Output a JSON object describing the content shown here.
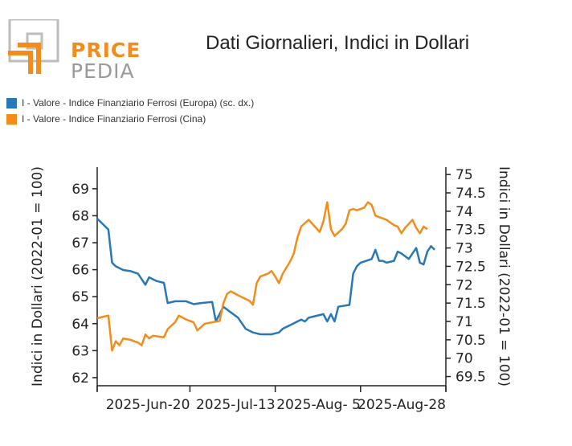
{
  "logo": {
    "word_top": "PRICE",
    "word_bottom": "PEDIA"
  },
  "title": "Dati Giornalieri, Indici in Dollari",
  "colors": {
    "europa": "#2878b5",
    "cina": "#f28c1a",
    "axis": "#222222",
    "logo_orange": "#f28c1a",
    "logo_grey": "#bdbdbd"
  },
  "legend": [
    {
      "label": "I - Valore - Indice Finanziario Ferrosi (Europa) (sc. dx.)",
      "color": "#2878b5"
    },
    {
      "label": "I - Valore - Indice Finanziario Ferrosi (Cina)",
      "color": "#f28c1a"
    }
  ],
  "chart_data": {
    "type": "line",
    "title": "Dati Giornalieri, Indici in Dollari",
    "xlabel": "",
    "ylabel_left": "Indici in Dollari (2022-01 = 100)",
    "ylabel_right": "Indici in Dollari (2022-01 = 100)",
    "x_tick_labels": [
      "2025-Jun-20",
      "2025-Jul-13",
      "2025-Aug- 5",
      "2025-Aug-28"
    ],
    "x_tick_days": [
      25,
      48,
      71,
      94
    ],
    "x_range_days": [
      0,
      94
    ],
    "x_origin_date": "2025-05-26",
    "ylim_left": [
      61.7,
      69.8
    ],
    "yticks_left": [
      62,
      63,
      64,
      65,
      66,
      67,
      68,
      69
    ],
    "ylim_right": [
      69.25,
      75.2
    ],
    "yticks_right": [
      69.5,
      70,
      70.5,
      71,
      71.5,
      72,
      72.5,
      73,
      73.5,
      74,
      74.5,
      75
    ],
    "grid": false,
    "legend_placement": "top-left",
    "series": [
      {
        "name": "I - Valore - Indice Finanziario Ferrosi (Europa) (sc. dx.)",
        "axis": "right",
        "color": "#2878b5",
        "points": [
          [
            0,
            73.8
          ],
          [
            3,
            73.5
          ],
          [
            4,
            72.6
          ],
          [
            5,
            72.5
          ],
          [
            7,
            72.4
          ],
          [
            9,
            72.37
          ],
          [
            11,
            72.3
          ],
          [
            13,
            72.0
          ],
          [
            14,
            72.2
          ],
          [
            16,
            72.1
          ],
          [
            18,
            72.05
          ],
          [
            19,
            71.5
          ],
          [
            21,
            71.55
          ],
          [
            24,
            71.55
          ],
          [
            26,
            71.47
          ],
          [
            28,
            71.5
          ],
          [
            31,
            71.53
          ],
          [
            32,
            71.0
          ],
          [
            34,
            71.4
          ],
          [
            36,
            71.25
          ],
          [
            38,
            71.1
          ],
          [
            40,
            70.8
          ],
          [
            42,
            70.7
          ],
          [
            44,
            70.65
          ],
          [
            47,
            70.65
          ],
          [
            49,
            70.7
          ],
          [
            50,
            70.8
          ],
          [
            52,
            70.9
          ],
          [
            54,
            71.0
          ],
          [
            55,
            71.05
          ],
          [
            56,
            71.0
          ],
          [
            57,
            71.1
          ],
          [
            59,
            71.15
          ],
          [
            61,
            71.2
          ],
          [
            62,
            71.0
          ],
          [
            63,
            71.2
          ],
          [
            64,
            71.0
          ],
          [
            65,
            71.4
          ],
          [
            68,
            71.45
          ],
          [
            69,
            72.3
          ],
          [
            70,
            72.5
          ],
          [
            71,
            72.6
          ],
          [
            74,
            72.7
          ],
          [
            75,
            72.95
          ],
          [
            76,
            72.65
          ],
          [
            77,
            72.65
          ],
          [
            78,
            72.6
          ],
          [
            80,
            72.65
          ],
          [
            81,
            72.9
          ],
          [
            82,
            72.85
          ],
          [
            84,
            72.7
          ],
          [
            86,
            73.0
          ],
          [
            87,
            72.6
          ],
          [
            88,
            72.55
          ],
          [
            89,
            72.9
          ],
          [
            90,
            73.05
          ],
          [
            91,
            72.95
          ]
        ]
      },
      {
        "name": "I - Valore - Indice Finanziario Ferrosi (Cina)",
        "axis": "left",
        "color": "#f28c1a",
        "points": [
          [
            0,
            64.2
          ],
          [
            3,
            64.3
          ],
          [
            4,
            63.0
          ],
          [
            5,
            63.35
          ],
          [
            6,
            63.2
          ],
          [
            7,
            63.45
          ],
          [
            9,
            63.4
          ],
          [
            11,
            63.3
          ],
          [
            12,
            63.2
          ],
          [
            13,
            63.6
          ],
          [
            14,
            63.45
          ],
          [
            15,
            63.55
          ],
          [
            18,
            63.5
          ],
          [
            19,
            63.8
          ],
          [
            21,
            64.05
          ],
          [
            22,
            64.3
          ],
          [
            24,
            64.15
          ],
          [
            26,
            64.05
          ],
          [
            27,
            63.75
          ],
          [
            29,
            64.0
          ],
          [
            33,
            64.1
          ],
          [
            34,
            64.75
          ],
          [
            35,
            65.1
          ],
          [
            36,
            65.2
          ],
          [
            38,
            65.05
          ],
          [
            41,
            64.85
          ],
          [
            42,
            64.7
          ],
          [
            43,
            65.5
          ],
          [
            44,
            65.75
          ],
          [
            46,
            65.85
          ],
          [
            47,
            65.95
          ],
          [
            48,
            65.75
          ],
          [
            49,
            65.5
          ],
          [
            50,
            65.85
          ],
          [
            52,
            66.3
          ],
          [
            53,
            66.6
          ],
          [
            54,
            67.2
          ],
          [
            55,
            67.6
          ],
          [
            57,
            67.85
          ],
          [
            59,
            67.55
          ],
          [
            60,
            67.4
          ],
          [
            61,
            67.8
          ],
          [
            62,
            68.5
          ],
          [
            63,
            67.5
          ],
          [
            64,
            67.25
          ],
          [
            66,
            67.5
          ],
          [
            67,
            67.7
          ],
          [
            68,
            68.2
          ],
          [
            69,
            68.25
          ],
          [
            70,
            68.2
          ],
          [
            72,
            68.3
          ],
          [
            73,
            68.5
          ],
          [
            74,
            68.4
          ],
          [
            75,
            68.0
          ],
          [
            77,
            67.9
          ],
          [
            78,
            67.85
          ],
          [
            80,
            67.65
          ],
          [
            81,
            67.6
          ],
          [
            82,
            67.35
          ],
          [
            83,
            67.55
          ],
          [
            85,
            67.85
          ],
          [
            86,
            67.55
          ],
          [
            87,
            67.35
          ],
          [
            88,
            67.6
          ],
          [
            89,
            67.5
          ]
        ]
      }
    ]
  }
}
